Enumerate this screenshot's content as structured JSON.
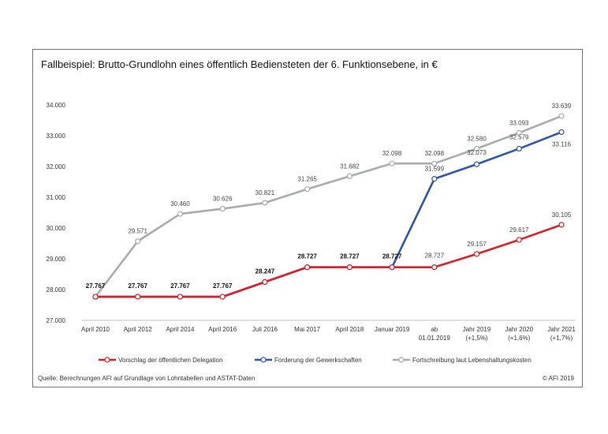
{
  "chart_data": {
    "type": "line",
    "title": "Fallbeispiel: Brutto-Grundlohn eines öffentlich Bediensteten der 6. Funktionsebene, in €",
    "xlabel": "",
    "ylabel": "",
    "ylim": [
      27000,
      34000
    ],
    "yticks": [
      "27.000",
      "28.000",
      "29.000",
      "30.000",
      "31.000",
      "32.000",
      "33.000",
      "34.000"
    ],
    "ytick_values": [
      27000,
      28000,
      29000,
      30000,
      31000,
      32000,
      33000,
      34000
    ],
    "grid": false,
    "legend_position": "bottom",
    "categories": [
      [
        "April 2010"
      ],
      [
        "April 2012"
      ],
      [
        "April 2014"
      ],
      [
        "April 2016"
      ],
      [
        "Juli 2016"
      ],
      [
        "Mai 2017"
      ],
      [
        "April 2018"
      ],
      [
        "Januar 2019"
      ],
      [
        "ab",
        "01.01.2019"
      ],
      [
        "Jahr 2019",
        "(+1,5%)"
      ],
      [
        "Jahr 2020",
        "(+1,6%)"
      ],
      [
        "Jahr 2021",
        "(+1,7%)"
      ]
    ],
    "series": [
      {
        "name": "Vorschlag der öffentlichen Delegation",
        "color": "#d0202a",
        "values": [
          27767,
          27767,
          27767,
          27767,
          28247,
          28727,
          28727,
          28727,
          28727,
          29157,
          29617,
          30105
        ],
        "labels": [
          "",
          "",
          "",
          "",
          "",
          "",
          "",
          "",
          "28.727",
          "29.157",
          "29.617",
          "30.105"
        ]
      },
      {
        "name": "Forderung der Gewerkschaften",
        "color": "#2e55a2",
        "values": [
          27767,
          27767,
          27767,
          27767,
          28247,
          28727,
          28727,
          28727,
          31599,
          32073,
          32579,
          33116
        ],
        "labels": [
          "27.767",
          "27.767",
          "27.767",
          "27.767",
          "28.247",
          "28.727",
          "28.727",
          "28.727",
          "31.599",
          "32.073",
          "32.579",
          "33.116"
        ]
      },
      {
        "name": "Fortschreibung laut Lebenshaltungskosten",
        "color": "#a8aaad",
        "values": [
          27767,
          29571,
          30460,
          30626,
          30821,
          31265,
          31682,
          32098,
          32098,
          32580,
          33093,
          33639
        ],
        "labels": [
          "",
          "29.571",
          "30.460",
          "30.626",
          "30.821",
          "31.265",
          "31.682",
          "32.098",
          "32.098",
          "32.580",
          "33.093",
          "33.639"
        ]
      }
    ]
  },
  "footer": {
    "source": "Quelle: Berechnungen AFI auf Grundlage von Lohntabellen und ASTAT-Daten",
    "copyright": "© AFI 2019"
  }
}
